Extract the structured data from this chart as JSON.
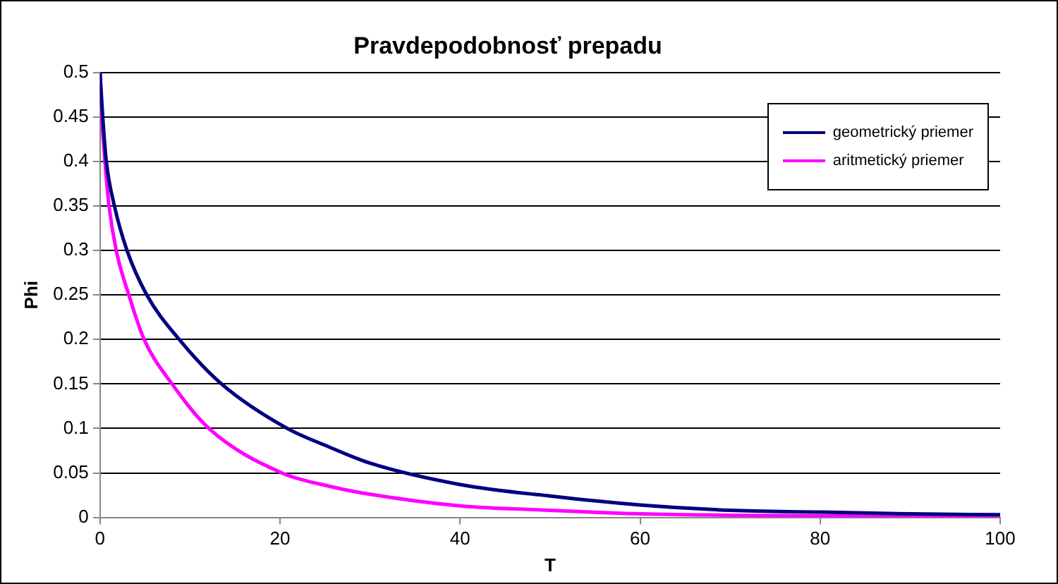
{
  "chart_data": {
    "type": "line",
    "title": "Pravdepodobnosť prepadu",
    "xlabel": "T",
    "ylabel": "Phi",
    "series": [
      {
        "name": "geometrický priemer",
        "color": "#000080",
        "x": [
          0,
          0.3,
          0.7,
          1.6,
          3,
          5.2,
          8.8,
          13.5,
          20.8,
          25.5,
          30,
          40,
          50,
          60,
          70,
          80,
          90,
          100
        ],
        "values": [
          0.5,
          0.45,
          0.4,
          0.35,
          0.3,
          0.25,
          0.2,
          0.15,
          0.1,
          0.079,
          0.061,
          0.037,
          0.024,
          0.014,
          0.008,
          0.006,
          0.004,
          0.003
        ]
      },
      {
        "name": "aritmetický priemer",
        "color": "#ff00ff",
        "x": [
          0,
          0.2,
          0.55,
          1,
          1.8,
          3.2,
          4.9,
          8,
          12.1,
          20.2,
          25.5,
          30,
          40,
          50,
          60,
          75,
          100
        ],
        "values": [
          0.5,
          0.45,
          0.4,
          0.35,
          0.3,
          0.25,
          0.2,
          0.15,
          0.1,
          0.05,
          0.035,
          0.026,
          0.013,
          0.008,
          0.004,
          0.002,
          0.001
        ]
      }
    ],
    "xlim": [
      0,
      100
    ],
    "xticks": [
      0,
      20,
      40,
      60,
      80,
      100
    ],
    "ylim": [
      0,
      0.5
    ],
    "yticks": [
      0,
      0.05,
      0.1,
      0.15,
      0.2,
      0.25,
      0.3,
      0.35,
      0.4,
      0.45,
      0.5
    ],
    "grid": "y",
    "legend": "top right",
    "marker": "none",
    "line_style": "solid"
  }
}
